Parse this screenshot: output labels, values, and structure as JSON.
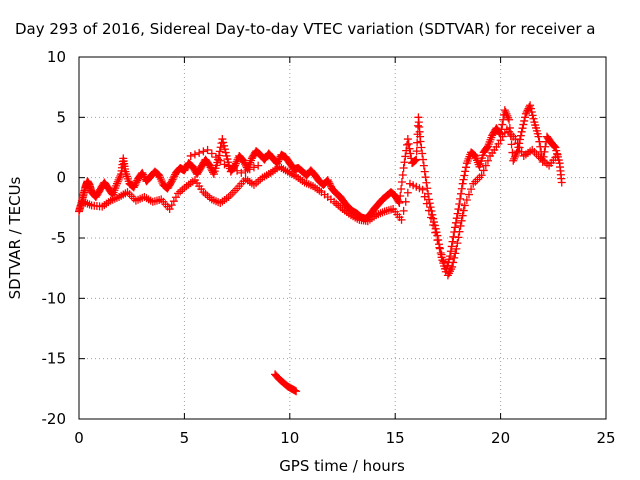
{
  "chart_data": {
    "type": "scatter",
    "title": "Day 293 of 2016, Sidereal Day-to-day VTEC variation (SDTVAR) for receiver a",
    "xlabel": "GPS time / hours",
    "ylabel": "SDTVAR / TECUs",
    "xlim": [
      0,
      25
    ],
    "ylim": [
      -20,
      10
    ],
    "x_ticks": [
      0,
      5,
      10,
      15,
      20,
      25
    ],
    "y_ticks": [
      -20,
      -15,
      -10,
      -5,
      0,
      5,
      10
    ],
    "x_tick_labels": [
      "0",
      "5",
      "10",
      "15",
      "20",
      "25"
    ],
    "y_tick_labels": [
      "-20",
      "-15",
      "-10",
      "-5",
      "0",
      "5",
      "10"
    ],
    "grid": true,
    "marker": "+",
    "marker_color": "#ff0000",
    "grid_color": "#a0a0a0",
    "series": [
      {
        "points": [
          [
            0.0,
            -2.8
          ],
          [
            0.1,
            -2.2
          ],
          [
            0.2,
            -1.5
          ],
          [
            0.3,
            -0.8
          ],
          [
            0.4,
            -0.3
          ],
          [
            0.5,
            -0.6
          ],
          [
            0.6,
            -1.2
          ],
          [
            0.8,
            -1.6
          ],
          [
            1.0,
            -1.0
          ],
          [
            1.2,
            -0.4
          ],
          [
            1.4,
            -0.9
          ],
          [
            1.6,
            -1.4
          ],
          [
            1.8,
            -0.5
          ],
          [
            2.0,
            0.3
          ],
          [
            2.1,
            1.6
          ],
          [
            2.2,
            0.5
          ],
          [
            2.4,
            -0.5
          ],
          [
            2.6,
            -0.8
          ],
          [
            2.8,
            -0.1
          ],
          [
            3.0,
            0.4
          ],
          [
            3.2,
            -0.3
          ],
          [
            3.4,
            0.1
          ],
          [
            3.6,
            0.5
          ],
          [
            3.8,
            0.2
          ],
          [
            4.0,
            -0.6
          ],
          [
            4.2,
            -0.9
          ],
          [
            4.4,
            -0.3
          ],
          [
            4.6,
            0.4
          ],
          [
            4.8,
            0.8
          ],
          [
            5.0,
            0.6
          ],
          [
            5.2,
            1.2
          ],
          [
            5.4,
            0.9
          ],
          [
            5.6,
            0.3
          ],
          [
            5.8,
            0.9
          ],
          [
            6.0,
            1.5
          ],
          [
            6.2,
            1.0
          ],
          [
            6.4,
            0.3
          ],
          [
            6.6,
            1.5
          ],
          [
            6.8,
            3.2
          ],
          [
            7.0,
            1.8
          ],
          [
            7.2,
            0.5
          ],
          [
            7.4,
            1.0
          ],
          [
            7.6,
            1.8
          ],
          [
            7.8,
            1.4
          ],
          [
            8.0,
            0.7
          ],
          [
            8.2,
            1.6
          ],
          [
            8.4,
            2.2
          ],
          [
            8.6,
            1.9
          ],
          [
            8.8,
            1.5
          ],
          [
            9.0,
            2.0
          ],
          [
            9.2,
            1.6
          ],
          [
            9.4,
            1.2
          ],
          [
            9.6,
            1.9
          ],
          [
            9.8,
            1.7
          ],
          [
            10.0,
            1.2
          ],
          [
            10.2,
            0.7
          ],
          [
            10.4,
            0.8
          ],
          [
            10.6,
            0.5
          ],
          [
            10.8,
            0.2
          ],
          [
            11.0,
            0.6
          ],
          [
            11.2,
            0.2
          ],
          [
            11.4,
            -0.3
          ],
          [
            11.6,
            -0.6
          ],
          [
            11.8,
            -0.2
          ],
          [
            12.0,
            -0.9
          ],
          [
            12.2,
            -1.3
          ],
          [
            12.4,
            -1.6
          ],
          [
            12.6,
            -2.1
          ],
          [
            12.8,
            -2.5
          ],
          [
            13.0,
            -2.8
          ],
          [
            13.2,
            -3.0
          ],
          [
            13.4,
            -3.3
          ],
          [
            13.6,
            -3.4
          ],
          [
            13.8,
            -3.1
          ],
          [
            14.0,
            -2.6
          ],
          [
            14.2,
            -2.2
          ],
          [
            14.4,
            -1.8
          ],
          [
            14.6,
            -1.5
          ],
          [
            14.8,
            -1.2
          ],
          [
            15.0,
            -1.5
          ],
          [
            15.2,
            -2.1
          ],
          [
            15.4,
            0.8
          ],
          [
            15.6,
            3.2
          ],
          [
            15.8,
            1.2
          ],
          [
            16.0,
            1.5
          ],
          [
            16.1,
            5.0
          ],
          [
            16.2,
            3.0
          ],
          [
            16.4,
            0.5
          ],
          [
            16.6,
            -1.8
          ],
          [
            16.8,
            -3.4
          ],
          [
            17.0,
            -4.8
          ],
          [
            17.2,
            -6.6
          ],
          [
            17.4,
            -7.8
          ],
          [
            17.6,
            -6.5
          ],
          [
            17.8,
            -4.5
          ],
          [
            18.0,
            -2.6
          ],
          [
            18.2,
            -0.5
          ],
          [
            18.4,
            1.2
          ],
          [
            18.6,
            2.1
          ],
          [
            18.8,
            1.8
          ],
          [
            19.0,
            0.9
          ],
          [
            19.2,
            2.1
          ],
          [
            19.4,
            2.6
          ],
          [
            19.6,
            3.5
          ],
          [
            19.8,
            4.1
          ],
          [
            20.0,
            3.6
          ],
          [
            20.2,
            5.6
          ],
          [
            20.4,
            4.8
          ],
          [
            20.6,
            1.4
          ],
          [
            20.8,
            2.2
          ],
          [
            21.0,
            3.8
          ],
          [
            21.2,
            5.3
          ],
          [
            21.4,
            6.0
          ],
          [
            21.6,
            4.6
          ],
          [
            21.8,
            3.4
          ],
          [
            22.0,
            1.3
          ],
          [
            22.2,
            3.4
          ],
          [
            22.4,
            2.9
          ],
          [
            22.6,
            2.5
          ],
          [
            22.8,
            1.2
          ],
          [
            22.9,
            -0.4
          ],
          [
            0.2,
            -2.0
          ],
          [
            0.6,
            -2.3
          ],
          [
            1.1,
            -2.4
          ],
          [
            1.5,
            -1.9
          ],
          [
            1.9,
            -1.6
          ],
          [
            2.3,
            -1.2
          ],
          [
            2.7,
            -1.9
          ],
          [
            3.1,
            -1.6
          ],
          [
            3.5,
            -2.0
          ],
          [
            3.9,
            -1.8
          ],
          [
            4.3,
            -2.6
          ],
          [
            4.7,
            -1.3
          ],
          [
            5.1,
            -0.7
          ],
          [
            5.5,
            -0.2
          ],
          [
            5.9,
            -1.2
          ],
          [
            6.3,
            -1.8
          ],
          [
            6.7,
            -2.1
          ],
          [
            7.1,
            -1.6
          ],
          [
            7.5,
            -0.9
          ],
          [
            7.9,
            -0.1
          ],
          [
            8.3,
            -0.6
          ],
          [
            8.7,
            0.0
          ],
          [
            9.1,
            0.4
          ],
          [
            9.5,
            0.9
          ],
          [
            9.9,
            0.5
          ],
          [
            10.3,
            0.1
          ],
          [
            10.7,
            -0.4
          ],
          [
            11.1,
            -0.7
          ],
          [
            11.5,
            -1.2
          ],
          [
            12.1,
            -2.0
          ],
          [
            12.5,
            -2.6
          ],
          [
            12.9,
            -3.1
          ],
          [
            13.3,
            -3.5
          ],
          [
            13.7,
            -3.6
          ],
          [
            14.1,
            -3.1
          ],
          [
            14.5,
            -2.8
          ],
          [
            14.9,
            -2.6
          ],
          [
            15.3,
            -3.5
          ],
          [
            15.7,
            -0.5
          ],
          [
            16.3,
            -1.0
          ],
          [
            16.7,
            -3.3
          ],
          [
            17.1,
            -5.8
          ],
          [
            17.5,
            -8.1
          ],
          [
            17.7,
            -7.4
          ],
          [
            17.9,
            -5.9
          ],
          [
            18.1,
            -4.0
          ],
          [
            18.3,
            -2.3
          ],
          [
            18.7,
            -0.5
          ],
          [
            19.1,
            0.2
          ],
          [
            19.5,
            1.8
          ],
          [
            19.9,
            2.8
          ],
          [
            20.3,
            4.0
          ],
          [
            20.7,
            3.2
          ],
          [
            21.1,
            1.8
          ],
          [
            21.5,
            2.3
          ],
          [
            21.9,
            1.6
          ],
          [
            22.3,
            1.0
          ],
          [
            22.7,
            1.9
          ],
          [
            5.3,
            1.8
          ],
          [
            6.1,
            2.3
          ],
          [
            6.9,
            1.1
          ],
          [
            7.7,
            0.4
          ],
          [
            8.5,
            1.0
          ],
          [
            9.3,
            -16.3
          ],
          [
            9.5,
            -16.7
          ],
          [
            9.7,
            -17.0
          ],
          [
            9.9,
            -17.3
          ],
          [
            10.1,
            -17.5
          ],
          [
            10.3,
            -17.7
          ]
        ]
      }
    ]
  }
}
